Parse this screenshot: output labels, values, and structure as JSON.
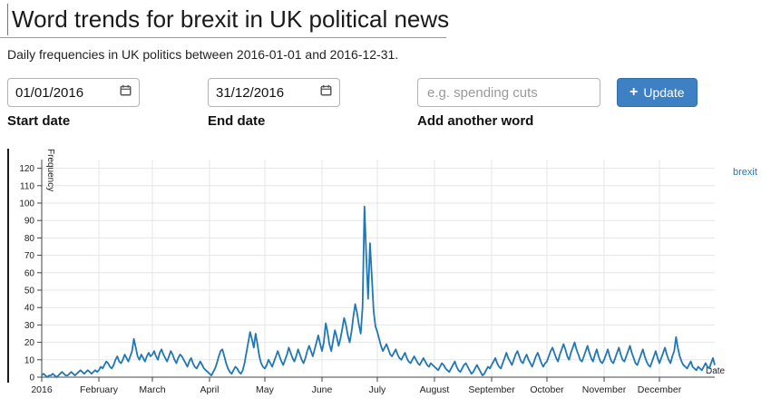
{
  "header": {
    "title": "Word trends for brexit in UK political news",
    "subtitle": "Daily frequencies in UK politics between 2016-01-01 and 2016-12-31."
  },
  "form": {
    "start_date": {
      "value": "01/01/2016",
      "label": "Start date"
    },
    "end_date": {
      "value": "31/12/2016",
      "label": "End date"
    },
    "add_word": {
      "placeholder": "e.g. spending cuts",
      "label": "Add another word"
    },
    "update_button": {
      "icon": "+",
      "label": "Update",
      "color": "#3d80c4"
    }
  },
  "chart_data": {
    "type": "line",
    "title": "",
    "xlabel": "Date",
    "ylabel": "Frequency",
    "x_start_date": "2016-01-01",
    "x_end_date": "2016-12-31",
    "x_tick_labels": [
      "2016",
      "February",
      "March",
      "April",
      "May",
      "June",
      "July",
      "August",
      "September",
      "October",
      "November",
      "December"
    ],
    "month_start_indices": [
      0,
      31,
      60,
      91,
      121,
      152,
      182,
      213,
      244,
      274,
      305,
      335
    ],
    "y_ticks": [
      0,
      10,
      20,
      30,
      40,
      50,
      60,
      70,
      80,
      90,
      100,
      110,
      120
    ],
    "ylim": [
      0,
      125
    ],
    "grid": true,
    "legend": {
      "position": "right"
    },
    "series": [
      {
        "name": "brexit",
        "color": "#1f77b4",
        "values": [
          1,
          2,
          1,
          0,
          1,
          1,
          2,
          1,
          0,
          1,
          2,
          3,
          2,
          1,
          1,
          2,
          3,
          2,
          1,
          2,
          3,
          4,
          3,
          2,
          3,
          4,
          3,
          2,
          3,
          4,
          3,
          4,
          6,
          5,
          7,
          9,
          8,
          6,
          5,
          7,
          10,
          12,
          9,
          8,
          10,
          13,
          11,
          9,
          12,
          15,
          22,
          17,
          12,
          10,
          13,
          11,
          9,
          12,
          14,
          12,
          13,
          15,
          12,
          10,
          14,
          16,
          13,
          11,
          9,
          12,
          15,
          13,
          10,
          8,
          11,
          13,
          12,
          10,
          8,
          6,
          9,
          11,
          8,
          6,
          5,
          7,
          9,
          7,
          5,
          4,
          3,
          2,
          1,
          3,
          5,
          8,
          12,
          15,
          16,
          12,
          8,
          5,
          3,
          2,
          4,
          6,
          5,
          3,
          2,
          4,
          8,
          14,
          20,
          26,
          22,
          17,
          25,
          19,
          12,
          8,
          6,
          5,
          7,
          10,
          8,
          6,
          9,
          12,
          15,
          12,
          9,
          7,
          10,
          13,
          17,
          14,
          11,
          9,
          12,
          16,
          13,
          10,
          8,
          11,
          15,
          18,
          15,
          12,
          16,
          20,
          24,
          19,
          15,
          20,
          31,
          26,
          19,
          15,
          21,
          27,
          23,
          18,
          22,
          28,
          34,
          30,
          24,
          20,
          26,
          35,
          42,
          37,
          30,
          25,
          40,
          98,
          70,
          45,
          77,
          58,
          38,
          29,
          26,
          22,
          18,
          15,
          17,
          19,
          16,
          13,
          12,
          14,
          16,
          13,
          11,
          10,
          12,
          14,
          11,
          9,
          8,
          10,
          12,
          10,
          8,
          7,
          9,
          11,
          9,
          7,
          6,
          8,
          7,
          6,
          5,
          4,
          6,
          8,
          7,
          5,
          4,
          3,
          5,
          7,
          9,
          6,
          4,
          3,
          5,
          7,
          8,
          6,
          4,
          2,
          3,
          5,
          7,
          5,
          3,
          1,
          2,
          4,
          6,
          5,
          7,
          9,
          11,
          8,
          6,
          5,
          8,
          11,
          14,
          11,
          9,
          7,
          10,
          13,
          15,
          12,
          9,
          8,
          11,
          13,
          10,
          8,
          6,
          9,
          12,
          14,
          11,
          8,
          6,
          8,
          9,
          12,
          15,
          17,
          14,
          11,
          9,
          13,
          16,
          19,
          16,
          12,
          10,
          14,
          17,
          20,
          16,
          13,
          10,
          9,
          12,
          15,
          18,
          14,
          11,
          9,
          13,
          16,
          12,
          9,
          8,
          10,
          13,
          16,
          12,
          9,
          8,
          11,
          14,
          17,
          13,
          10,
          9,
          12,
          15,
          18,
          14,
          11,
          8,
          7,
          10,
          13,
          16,
          12,
          9,
          7,
          6,
          9,
          12,
          15,
          11,
          8,
          11,
          14,
          17,
          13,
          10,
          8,
          12,
          15,
          23,
          17,
          12,
          9,
          7,
          6,
          5,
          7,
          9,
          6,
          5,
          4,
          6,
          5,
          4,
          6,
          8,
          6,
          5,
          8,
          11,
          7
        ]
      }
    ]
  }
}
